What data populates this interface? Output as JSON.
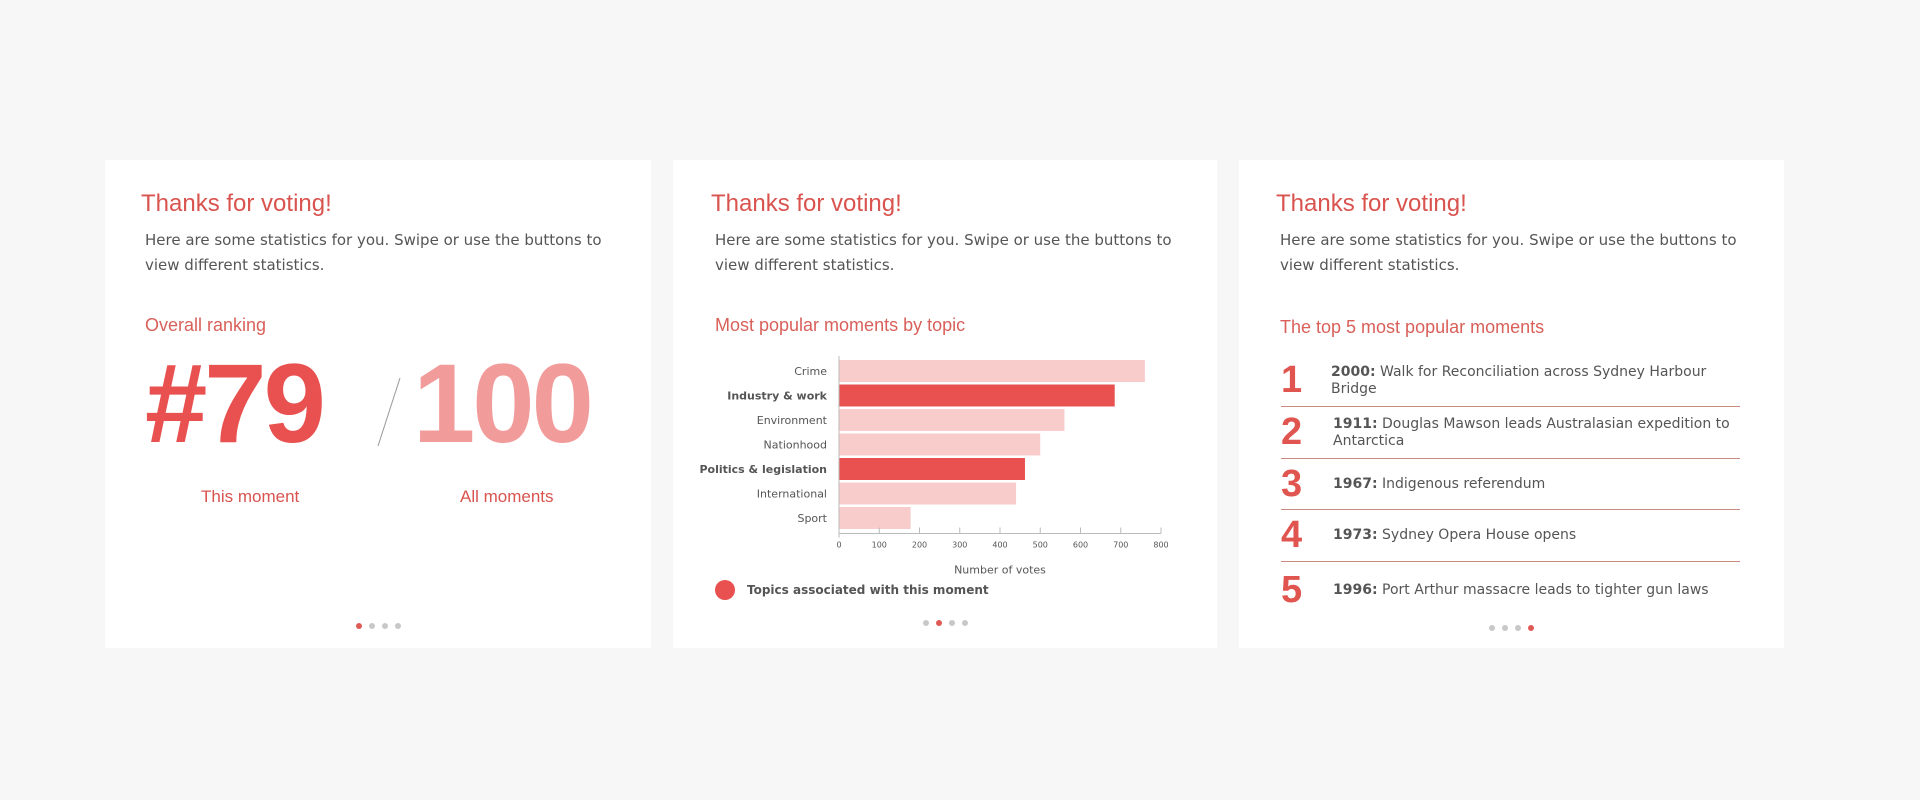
{
  "cards": [
    {
      "title": "Thanks for voting!",
      "intro": "Here are some statistics for you. Swipe or use the buttons to view different statistics.",
      "subhead": "Overall ranking",
      "rank_this": "#79",
      "rank_all": "100",
      "label_this": "This moment",
      "label_all": "All moments",
      "active_dot": 0
    },
    {
      "title": "Thanks for voting!",
      "intro": "Here are some statistics for you. Swipe or use the buttons to view different statistics.",
      "subhead": "Most popular moments by topic",
      "legend": "Topics associated with this moment",
      "active_dot": 1
    },
    {
      "title": "Thanks for voting!",
      "intro": "Here are some statistics for you. Swipe or use the buttons to view different statistics.",
      "subhead": "The top 5 most popular moments",
      "active_dot": 3,
      "items": [
        {
          "rank": "1",
          "year": "2000:",
          "text": "Walk for Reconciliation across Sydney Harbour Bridge"
        },
        {
          "rank": "2",
          "year": "1911:",
          "text": "Douglas Mawson leads Australasian expedition to Antarctica"
        },
        {
          "rank": "3",
          "year": "1967:",
          "text": "Indigenous referendum"
        },
        {
          "rank": "4",
          "year": "1973:",
          "text": "Sydney Opera House opens"
        },
        {
          "rank": "5",
          "year": "1996:",
          "text": "Port Arthur massacre leads to tighter gun laws"
        }
      ]
    }
  ],
  "colors": {
    "accent": "#e8514f",
    "accent_light": "#f29b9b",
    "bar_light": "#f9cccc",
    "dot": "#c8c8c8"
  },
  "chart_data": {
    "type": "bar",
    "orientation": "horizontal",
    "categories": [
      "Crime",
      "Industry & work",
      "Environment",
      "Nationhood",
      "Politics & legislation",
      "International",
      "Sport"
    ],
    "values": [
      760,
      685,
      560,
      500,
      462,
      440,
      178
    ],
    "highlighted": [
      false,
      true,
      false,
      false,
      true,
      false,
      false
    ],
    "xlabel": "Number of votes",
    "ylabel": "",
    "xlim": [
      0,
      800
    ],
    "xticks": [
      0,
      100,
      200,
      300,
      400,
      500,
      600,
      700,
      800
    ],
    "grid": false
  }
}
